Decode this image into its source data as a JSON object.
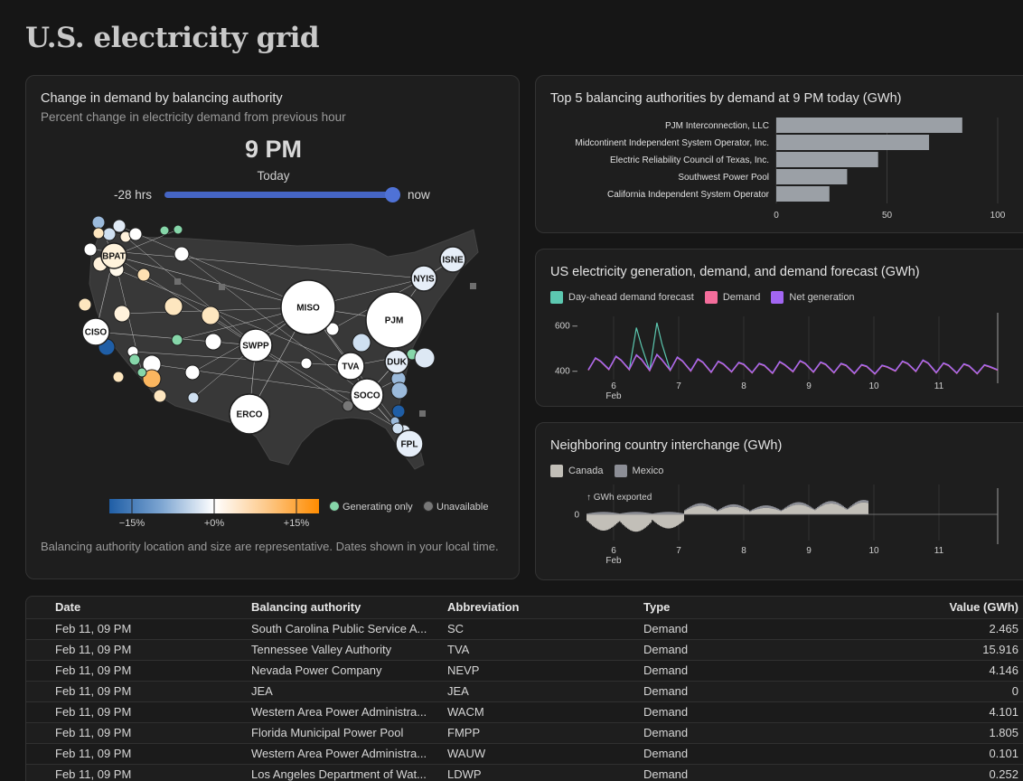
{
  "page": {
    "title": "U.S. electricity grid"
  },
  "map_card": {
    "title": "Change in demand by balancing authority",
    "subtitle": "Percent change in electricity demand from previous hour",
    "hour": "9 PM",
    "day": "Today",
    "slider": {
      "left_label": "-28 hrs",
      "right_label": "now",
      "value_pct": 100
    },
    "nodes": [
      "BPAT",
      "CISO",
      "MISO",
      "PJM",
      "SWPP",
      "ERCO",
      "NYIS",
      "ISNE",
      "TVA",
      "DUK",
      "SOCO",
      "FPL"
    ],
    "legend": {
      "tick_neg": "−15%",
      "tick_zero": "+0%",
      "tick_pos": "+15%",
      "generating": "Generating only",
      "unavailable": "Unavailable"
    },
    "footnote": "Balancing authority location and size are representative. Dates shown in your local time."
  },
  "top5": {
    "title": "Top 5 balancing authorities by demand at 9 PM today (GWh)",
    "chart_data": {
      "type": "bar",
      "orientation": "horizontal",
      "categories": [
        "PJM Interconnection, LLC",
        "Midcontinent Independent System Operator, Inc.",
        "Electric Reliability Council of Texas, Inc.",
        "Southwest Power Pool",
        "California Independent System Operator"
      ],
      "values": [
        84,
        69,
        46,
        32,
        24
      ],
      "xlim": [
        0,
        100
      ],
      "xticks": [
        "0",
        "50",
        "100"
      ],
      "color": "#9ba0a6"
    }
  },
  "timeseries": {
    "title": "US electricity generation, demand, and demand forecast (GWh)",
    "legend": [
      "Day-ahead demand forecast",
      "Demand",
      "Net generation"
    ],
    "colors": [
      "#5cc8b0",
      "#f46d9b",
      "#a266f2"
    ],
    "chart_data": {
      "type": "line",
      "x_ticks": [
        "6",
        "7",
        "8",
        "9",
        "10",
        "11"
      ],
      "x_sublabel": "Feb",
      "y_ticks": [
        "600",
        "400"
      ],
      "ylim": [
        360,
        640
      ],
      "series": [
        {
          "name": "Day-ahead demand forecast",
          "peaks": [
            455,
            462,
            590,
            612,
            458,
            450,
            440,
            435,
            430,
            438,
            442,
            436,
            430,
            425,
            422,
            440,
            445,
            432,
            428,
            424
          ],
          "troughs": [
            402,
            405,
            404,
            400,
            401,
            398,
            392,
            394,
            390,
            388,
            395,
            393,
            390,
            387,
            385,
            398,
            396,
            390,
            388,
            386
          ]
        },
        {
          "name": "Demand",
          "peaks": [
            455,
            462,
            468,
            470,
            458,
            450,
            440,
            435,
            430,
            438,
            442,
            436,
            430,
            425,
            422,
            440,
            445,
            432,
            428,
            424
          ],
          "troughs": [
            402,
            405,
            404,
            400,
            401,
            398,
            392,
            394,
            390,
            388,
            395,
            393,
            390,
            387,
            385,
            398,
            396,
            390,
            388,
            386
          ]
        },
        {
          "name": "Net generation",
          "peaks": [
            457,
            464,
            470,
            472,
            460,
            452,
            442,
            437,
            432,
            440,
            444,
            438,
            432,
            427,
            424,
            442,
            447,
            434,
            430,
            426
          ],
          "troughs": [
            404,
            407,
            406,
            402,
            403,
            400,
            394,
            396,
            392,
            390,
            397,
            395,
            392,
            389,
            387,
            400,
            398,
            392,
            390,
            388
          ]
        }
      ]
    }
  },
  "interchange": {
    "title": "Neighboring country interchange (GWh)",
    "legend": [
      "Canada",
      "Mexico"
    ],
    "colors": [
      "#c2bfb8",
      "#8c8e96"
    ],
    "annotation": "↑ GWh exported",
    "chart_data": {
      "type": "bar",
      "stacked": true,
      "x_ticks": [
        "6",
        "7",
        "8",
        "9",
        "10",
        "11"
      ],
      "x_sublabel": "Feb",
      "y_ticks": [
        "0"
      ],
      "daily_canada_amplitude": [
        -30,
        -32,
        -26,
        16,
        14,
        12,
        18,
        20,
        22
      ],
      "mexico_mean": 3
    }
  },
  "table": {
    "columns": [
      "Date",
      "Balancing authority",
      "Abbreviation",
      "Type",
      "Value (GWh)"
    ],
    "rows": [
      [
        "Feb 11, 09 PM",
        "South Carolina Public Service A...",
        "SC",
        "Demand",
        "2.465"
      ],
      [
        "Feb 11, 09 PM",
        "Tennessee Valley Authority",
        "TVA",
        "Demand",
        "15.916"
      ],
      [
        "Feb 11, 09 PM",
        "Nevada Power Company",
        "NEVP",
        "Demand",
        "4.146"
      ],
      [
        "Feb 11, 09 PM",
        "JEA",
        "JEA",
        "Demand",
        "0"
      ],
      [
        "Feb 11, 09 PM",
        "Western Area Power Administra...",
        "WACM",
        "Demand",
        "4.101"
      ],
      [
        "Feb 11, 09 PM",
        "Florida Municipal Power Pool",
        "FMPP",
        "Demand",
        "1.805"
      ],
      [
        "Feb 11, 09 PM",
        "Western Area Power Administra...",
        "WAUW",
        "Demand",
        "0.101"
      ],
      [
        "Feb 11, 09 PM",
        "Los Angeles Department of Wat...",
        "LDWP",
        "Demand",
        "0.252"
      ]
    ]
  }
}
